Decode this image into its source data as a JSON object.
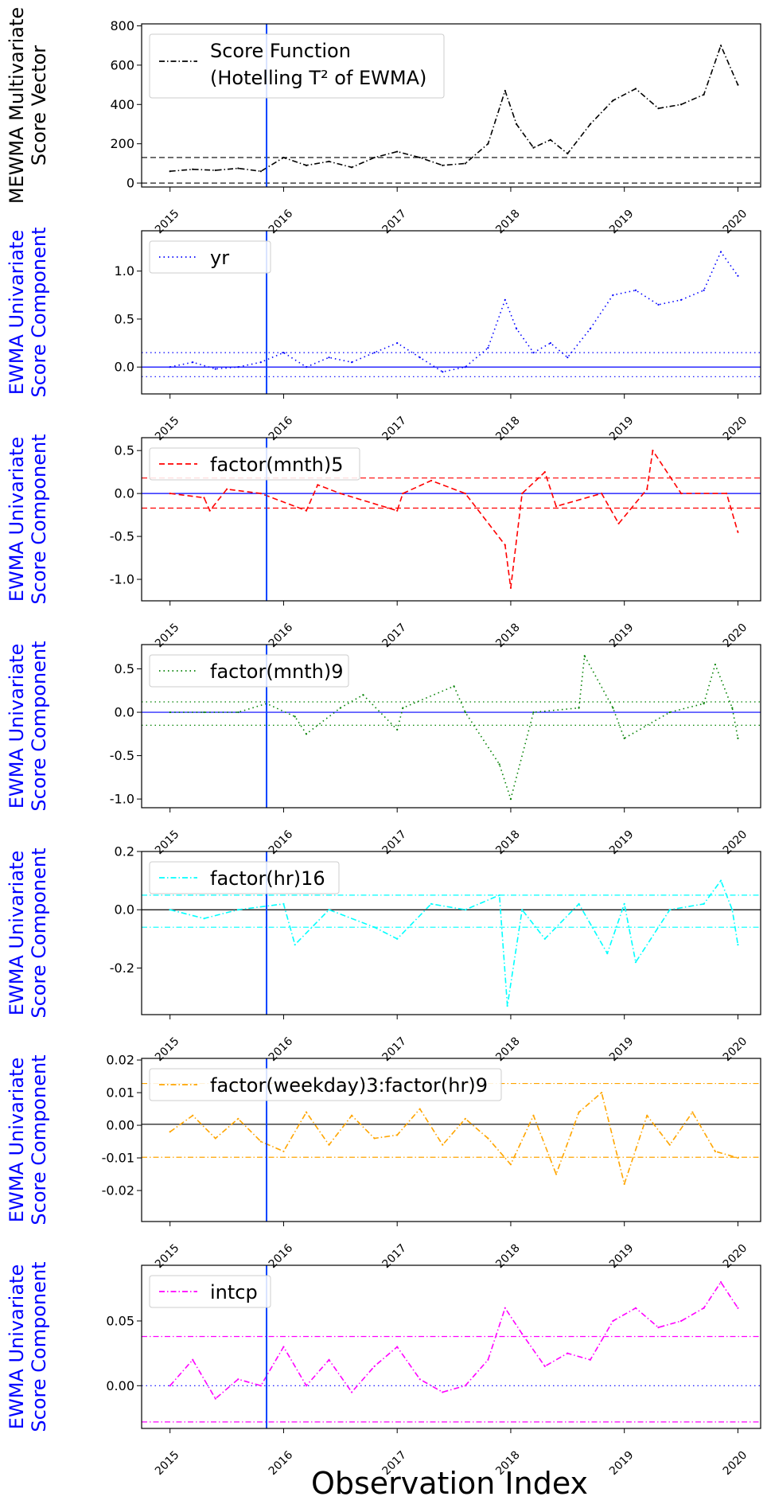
{
  "xlabel": "Observation Index",
  "chart_data": [
    {
      "type": "line",
      "ylabel": [
        "MEWMA Multivariate",
        "Score Vector"
      ],
      "ylabel_color": "#000000",
      "legend": [
        "Score Function",
        "(Hotelling T² of EWMA)"
      ],
      "legend_placement": "top-left",
      "color": "#000000",
      "style": "dashdot",
      "ylim": [
        -20,
        810
      ],
      "yticks": [
        "0",
        "200",
        "400",
        "600",
        "800"
      ],
      "ytick_values": [
        0,
        200,
        400,
        600,
        800
      ],
      "xticks": [
        "2015",
        "2016",
        "2017",
        "2018",
        "2019",
        "2020"
      ],
      "xtick_values": [
        2015,
        2016,
        2017,
        2018,
        2019,
        2020
      ],
      "xlim": [
        2014.75,
        2020.2
      ],
      "vline_x": 2015.85,
      "hlines": [
        {
          "y": 130,
          "style": "dashed",
          "color": "#000000"
        },
        {
          "y": 0,
          "style": "dashed",
          "color": "#000000"
        }
      ],
      "series": [
        {
          "x": [
            2015.0,
            2015.2,
            2015.4,
            2015.6,
            2015.8,
            2016.0,
            2016.2,
            2016.4,
            2016.6,
            2016.8,
            2017.0,
            2017.2,
            2017.4,
            2017.6,
            2017.8,
            2017.95,
            2018.05,
            2018.2,
            2018.35,
            2018.5,
            2018.7,
            2018.9,
            2019.1,
            2019.3,
            2019.5,
            2019.7,
            2019.85,
            2020.0
          ],
          "values": [
            60,
            70,
            65,
            75,
            60,
            130,
            90,
            110,
            80,
            130,
            160,
            130,
            90,
            100,
            200,
            470,
            300,
            180,
            220,
            150,
            300,
            420,
            480,
            380,
            400,
            450,
            700,
            500
          ]
        }
      ]
    },
    {
      "type": "line",
      "ylabel": [
        "EWMA Univariate",
        "Score Component"
      ],
      "ylabel_color": "#0000ff",
      "legend": [
        "yr"
      ],
      "legend_placement": "top-left",
      "color": "#0000ff",
      "style": "dotted",
      "ylim": [
        -0.28,
        1.42
      ],
      "yticks": [
        "0.0",
        "0.5",
        "1.0"
      ],
      "ytick_values": [
        0.0,
        0.5,
        1.0
      ],
      "xticks": [
        "2015",
        "2016",
        "2017",
        "2018",
        "2019",
        "2020"
      ],
      "xtick_values": [
        2015,
        2016,
        2017,
        2018,
        2019,
        2020
      ],
      "xlim": [
        2014.75,
        2020.2
      ],
      "vline_x": 2015.85,
      "hlines": [
        {
          "y": 0.15,
          "style": "dotted",
          "color": "#0000ff"
        },
        {
          "y": 0.0,
          "style": "solid",
          "color": "#0000ff"
        },
        {
          "y": -0.1,
          "style": "dotted",
          "color": "#0000ff"
        }
      ],
      "series": [
        {
          "x": [
            2015.0,
            2015.2,
            2015.4,
            2015.6,
            2015.8,
            2016.0,
            2016.2,
            2016.4,
            2016.6,
            2016.8,
            2017.0,
            2017.2,
            2017.4,
            2017.6,
            2017.8,
            2017.95,
            2018.05,
            2018.2,
            2018.35,
            2018.5,
            2018.7,
            2018.9,
            2019.1,
            2019.3,
            2019.5,
            2019.7,
            2019.85,
            2020.0
          ],
          "values": [
            0.0,
            0.05,
            -0.02,
            0.0,
            0.05,
            0.15,
            0.0,
            0.1,
            0.05,
            0.15,
            0.25,
            0.1,
            -0.05,
            0.0,
            0.2,
            0.7,
            0.4,
            0.15,
            0.25,
            0.1,
            0.4,
            0.75,
            0.8,
            0.65,
            0.7,
            0.8,
            1.2,
            0.95
          ]
        }
      ]
    },
    {
      "type": "line",
      "ylabel": [
        "EWMA Univariate",
        "Score Component"
      ],
      "ylabel_color": "#0000ff",
      "legend": [
        "factor(mnth)5"
      ],
      "legend_placement": "top-left",
      "color": "#ff0000",
      "style": "dashed",
      "ylim": [
        -1.25,
        0.65
      ],
      "yticks": [
        "0.5",
        "0.0",
        "-0.5",
        "-1.0"
      ],
      "ytick_values": [
        0.5,
        0.0,
        -0.5,
        -1.0
      ],
      "xticks": [
        "2015",
        "2016",
        "2017",
        "2018",
        "2019",
        "2020"
      ],
      "xtick_values": [
        2015,
        2016,
        2017,
        2018,
        2019,
        2020
      ],
      "xlim": [
        2014.75,
        2020.2
      ],
      "vline_x": 2015.85,
      "hlines": [
        {
          "y": 0.18,
          "style": "dashed",
          "color": "#ff0000"
        },
        {
          "y": 0.0,
          "style": "solid",
          "color": "#0000ff"
        },
        {
          "y": -0.17,
          "style": "dashed",
          "color": "#ff0000"
        }
      ],
      "series": [
        {
          "x": [
            2015.0,
            2015.3,
            2015.35,
            2015.5,
            2015.8,
            2016.2,
            2016.3,
            2016.5,
            2017.0,
            2017.05,
            2017.3,
            2017.6,
            2017.95,
            2018.0,
            2018.1,
            2018.3,
            2018.4,
            2018.8,
            2018.95,
            2019.2,
            2019.25,
            2019.5,
            2019.9,
            2020.0
          ],
          "values": [
            0.0,
            -0.05,
            -0.2,
            0.05,
            0.0,
            -0.2,
            0.1,
            0.0,
            -0.2,
            0.0,
            0.15,
            0.0,
            -0.6,
            -1.1,
            0.0,
            0.25,
            -0.15,
            0.0,
            -0.35,
            0.05,
            0.5,
            0.0,
            0.0,
            -0.45
          ]
        }
      ]
    },
    {
      "type": "line",
      "ylabel": [
        "EWMA Univariate",
        "Score Component"
      ],
      "ylabel_color": "#0000ff",
      "legend": [
        "factor(mnth)9"
      ],
      "legend_placement": "top-left",
      "color": "#008000",
      "style": "dotted",
      "ylim": [
        -1.1,
        0.78
      ],
      "yticks": [
        "0.5",
        "0.0",
        "-0.5",
        "-1.0"
      ],
      "ytick_values": [
        0.5,
        0.0,
        -0.5,
        -1.0
      ],
      "xticks": [
        "2015",
        "2016",
        "2017",
        "2018",
        "2019",
        "2020"
      ],
      "xtick_values": [
        2015,
        2016,
        2017,
        2018,
        2019,
        2020
      ],
      "xlim": [
        2014.75,
        2020.2
      ],
      "vline_x": 2015.85,
      "hlines": [
        {
          "y": 0.12,
          "style": "dotted",
          "color": "#008000"
        },
        {
          "y": 0.0,
          "style": "solid",
          "color": "#0000ff"
        },
        {
          "y": -0.15,
          "style": "dotted",
          "color": "#008000"
        }
      ],
      "series": [
        {
          "x": [
            2015.0,
            2015.3,
            2015.6,
            2015.85,
            2016.1,
            2016.2,
            2016.5,
            2016.7,
            2017.0,
            2017.05,
            2017.5,
            2017.6,
            2017.9,
            2018.0,
            2018.2,
            2018.6,
            2018.65,
            2018.9,
            2019.0,
            2019.4,
            2019.7,
            2019.8,
            2019.95,
            2020.0
          ],
          "values": [
            0.0,
            0.0,
            0.0,
            0.1,
            -0.05,
            -0.25,
            0.05,
            0.2,
            -0.2,
            0.05,
            0.3,
            0.0,
            -0.6,
            -1.0,
            0.0,
            0.05,
            0.65,
            0.05,
            -0.3,
            0.0,
            0.1,
            0.55,
            0.05,
            -0.3
          ]
        }
      ]
    },
    {
      "type": "line",
      "ylabel": [
        "EWMA Univariate",
        "Score Component"
      ],
      "ylabel_color": "#0000ff",
      "legend": [
        "factor(hr)16"
      ],
      "legend_placement": "top-left",
      "color": "#00ffff",
      "style": "dashdot",
      "ylim": [
        -0.36,
        0.2
      ],
      "yticks": [
        "0.2",
        "0.0",
        "-0.2"
      ],
      "ytick_values": [
        0.2,
        0.0,
        -0.2
      ],
      "xticks": [
        "2015",
        "2016",
        "2017",
        "2018",
        "2019",
        "2020"
      ],
      "xtick_values": [
        2015,
        2016,
        2017,
        2018,
        2019,
        2020
      ],
      "xlim": [
        2014.75,
        2020.2
      ],
      "vline_x": 2015.85,
      "hlines": [
        {
          "y": 0.05,
          "style": "dashdot",
          "color": "#00ffff"
        },
        {
          "y": 0.0,
          "style": "solid",
          "color": "#000000"
        },
        {
          "y": -0.06,
          "style": "dashdot",
          "color": "#00ffff"
        }
      ],
      "series": [
        {
          "x": [
            2015.0,
            2015.3,
            2015.6,
            2016.0,
            2016.1,
            2016.4,
            2016.8,
            2017.0,
            2017.3,
            2017.6,
            2017.9,
            2017.97,
            2018.1,
            2018.3,
            2018.6,
            2018.85,
            2019.0,
            2019.1,
            2019.4,
            2019.7,
            2019.85,
            2019.95,
            2020.0
          ],
          "values": [
            0.0,
            -0.03,
            0.0,
            0.02,
            -0.12,
            0.0,
            -0.06,
            -0.1,
            0.02,
            0.0,
            0.05,
            -0.33,
            0.0,
            -0.1,
            0.02,
            -0.15,
            0.02,
            -0.18,
            0.0,
            0.02,
            0.1,
            0.0,
            -0.12
          ]
        }
      ]
    },
    {
      "type": "line",
      "ylabel": [
        "EWMA Univariate",
        "Score Component"
      ],
      "ylabel_color": "#0000ff",
      "legend": [
        "factor(weekday)3:factor(hr)9"
      ],
      "legend_placement": "top-left",
      "color": "#ffa500",
      "style": "dashdot",
      "ylim": [
        -0.0295,
        0.0205
      ],
      "yticks": [
        "0.02",
        "0.01",
        "0.00",
        "-0.01",
        "-0.02"
      ],
      "ytick_values": [
        0.02,
        0.01,
        0.0,
        -0.01,
        -0.02
      ],
      "xticks": [
        "2015",
        "2016",
        "2017",
        "2018",
        "2019",
        "2020"
      ],
      "xtick_values": [
        2015,
        2016,
        2017,
        2018,
        2019,
        2020
      ],
      "xlim": [
        2014.75,
        2020.2
      ],
      "vline_x": 2015.85,
      "hlines": [
        {
          "y": 0.0128,
          "style": "dashdot",
          "color": "#ffa500"
        },
        {
          "y": 0.0003,
          "style": "solid",
          "color": "#000000"
        },
        {
          "y": -0.0098,
          "style": "dashdot",
          "color": "#ffa500"
        }
      ],
      "series": [
        {
          "x": [
            2015.0,
            2015.2,
            2015.4,
            2015.6,
            2015.8,
            2016.0,
            2016.2,
            2016.4,
            2016.6,
            2016.8,
            2017.0,
            2017.2,
            2017.4,
            2017.6,
            2017.8,
            2018.0,
            2018.2,
            2018.4,
            2018.6,
            2018.8,
            2019.0,
            2019.2,
            2019.4,
            2019.6,
            2019.8,
            2020.0
          ],
          "values": [
            -0.002,
            0.003,
            -0.004,
            0.002,
            -0.005,
            -0.008,
            0.004,
            -0.006,
            0.003,
            -0.004,
            -0.003,
            0.005,
            -0.006,
            0.002,
            -0.004,
            -0.012,
            0.003,
            -0.015,
            0.004,
            0.01,
            -0.018,
            0.003,
            -0.006,
            0.004,
            -0.008,
            -0.01
          ]
        }
      ]
    },
    {
      "type": "line",
      "ylabel": [
        "EWMA Univariate",
        "Score Component"
      ],
      "ylabel_color": "#0000ff",
      "legend": [
        "intcp"
      ],
      "legend_placement": "top-left",
      "color": "#ff00ff",
      "style": "dashdot",
      "ylim": [
        -0.033,
        0.093
      ],
      "yticks": [
        "0.05",
        "0.00"
      ],
      "ytick_values": [
        0.05,
        0.0
      ],
      "xticks": [
        "2015",
        "2016",
        "2017",
        "2018",
        "2019",
        "2020"
      ],
      "xtick_values": [
        2015,
        2016,
        2017,
        2018,
        2019,
        2020
      ],
      "xlim": [
        2014.75,
        2020.2
      ],
      "vline_x": 2015.85,
      "hlines": [
        {
          "y": 0.038,
          "style": "dashdot",
          "color": "#ff00ff"
        },
        {
          "y": 0.0,
          "style": "dotted",
          "color": "#0000ff"
        },
        {
          "y": -0.028,
          "style": "dashdot",
          "color": "#ff00ff"
        }
      ],
      "series": [
        {
          "x": [
            2015.0,
            2015.2,
            2015.4,
            2015.6,
            2015.8,
            2016.0,
            2016.2,
            2016.4,
            2016.6,
            2016.8,
            2017.0,
            2017.2,
            2017.4,
            2017.6,
            2017.8,
            2017.95,
            2018.1,
            2018.3,
            2018.5,
            2018.7,
            2018.9,
            2019.1,
            2019.3,
            2019.5,
            2019.7,
            2019.85,
            2020.0
          ],
          "values": [
            0.0,
            0.02,
            -0.01,
            0.005,
            0.0,
            0.03,
            0.0,
            0.02,
            -0.005,
            0.015,
            0.03,
            0.005,
            -0.005,
            0.0,
            0.02,
            0.06,
            0.04,
            0.015,
            0.025,
            0.02,
            0.05,
            0.06,
            0.045,
            0.05,
            0.06,
            0.08,
            0.06
          ]
        }
      ]
    }
  ]
}
